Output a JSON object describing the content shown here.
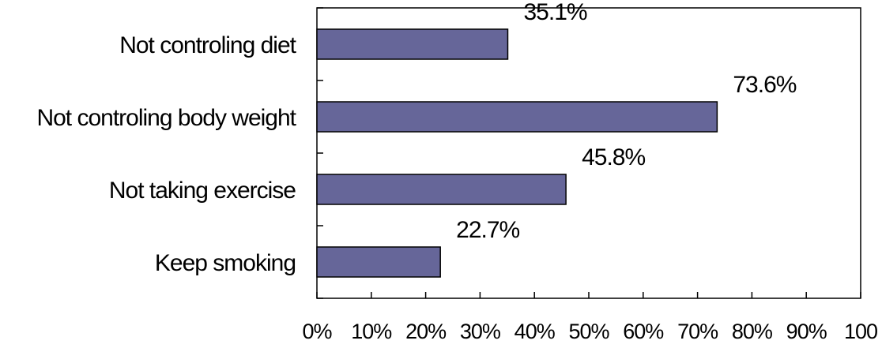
{
  "chart_data": {
    "type": "bar",
    "orientation": "horizontal",
    "categories": [
      "Not controling diet",
      "Not controling body weight",
      "Not taking exercise",
      "Keep smoking"
    ],
    "values": [
      35.1,
      73.6,
      45.8,
      22.7
    ],
    "value_labels": [
      "35.1%",
      "73.6%",
      "45.8%",
      "22.7%"
    ],
    "x_ticks": [
      "0%",
      "10%",
      "20%",
      "30%",
      "40%",
      "50%",
      "60%",
      "70%",
      "80%",
      "90%",
      "100"
    ],
    "xlim": [
      0,
      100
    ],
    "grid": false,
    "legend": "none",
    "colors": {
      "bar_fill": "#666699",
      "bar_stroke": "#000000",
      "axis": "#000000",
      "frame": "#000000"
    }
  }
}
